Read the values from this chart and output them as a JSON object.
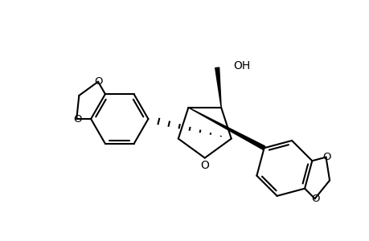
{
  "background_color": "#ffffff",
  "line_color": "#000000",
  "line_width": 1.5,
  "figsize": [
    4.6,
    3.0
  ],
  "dpi": 100,
  "oh_label": "OH",
  "o_label": "O",
  "font_size_oh": 10,
  "font_size_o": 10
}
